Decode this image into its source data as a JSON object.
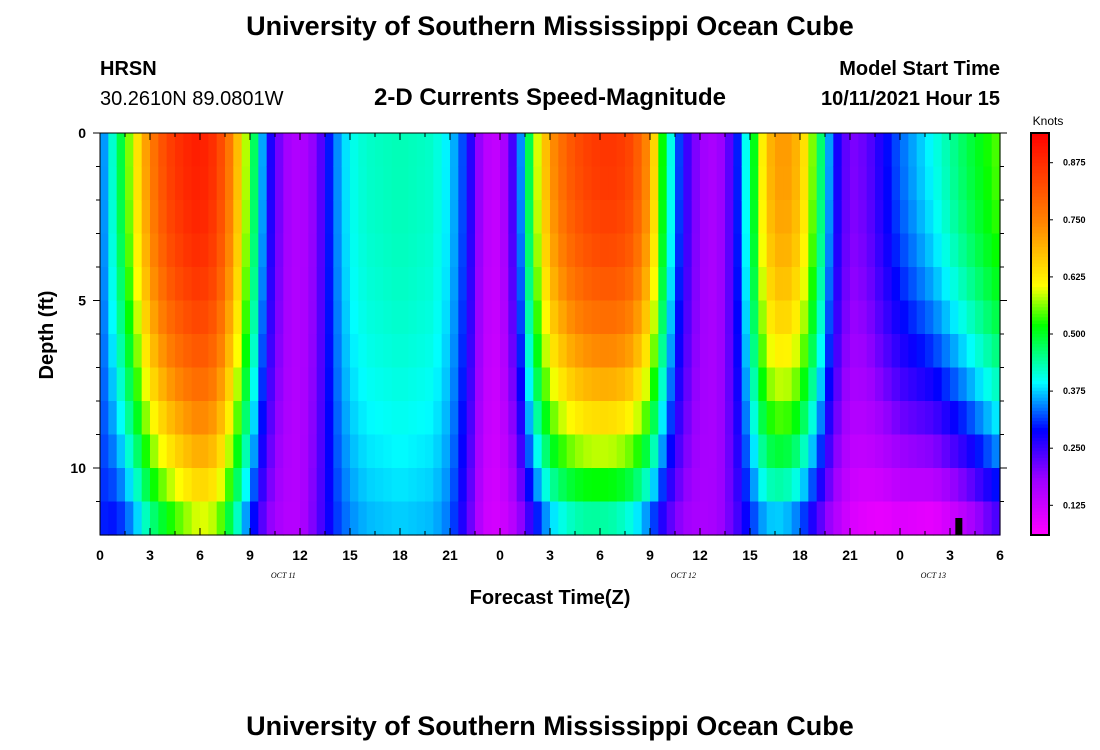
{
  "header": {
    "title": "University of Southern Mississippi Ocean Cube",
    "station": "HRSN",
    "coords": "30.2610N  89.0801W",
    "subtitle": "2-D Currents Speed-Magnitude",
    "model_label": "Model Start Time",
    "model_time": "10/11/2021 Hour 15"
  },
  "footer": {
    "title": "University of Southern Mississippi Ocean Cube"
  },
  "colorbar": {
    "unit": "Knots",
    "min": 0.06,
    "max": 0.94,
    "ticks": [
      "0.125",
      "0.250",
      "0.375",
      "0.500",
      "0.625",
      "0.750",
      "0.875"
    ]
  },
  "chart_data": {
    "type": "heatmap",
    "title": "2-D Currents Speed-Magnitude",
    "xlabel": "Forecast Time(Z)",
    "ylabel": "Depth (ft)",
    "value_unit": "Knots",
    "x_hours": [
      0,
      54
    ],
    "ylim": [
      0,
      12
    ],
    "x_ticks": [
      "0",
      "3",
      "6",
      "9",
      "12",
      "15",
      "18",
      "21",
      "0",
      "3",
      "6",
      "9",
      "12",
      "15",
      "18",
      "21",
      "0",
      "3",
      "6"
    ],
    "y_ticks": [
      "0",
      "5",
      "10"
    ],
    "date_labels": [
      {
        "hour": 11,
        "text": "OCT 11"
      },
      {
        "hour": 35,
        "text": "OCT 12"
      },
      {
        "hour": 50,
        "text": "OCT 13"
      }
    ],
    "column_profiles": [
      {
        "hour": 0,
        "surface": 0.32,
        "bottom": 0.3
      },
      {
        "hour": 1,
        "surface": 0.45,
        "bottom": 0.28
      },
      {
        "hour": 2,
        "surface": 0.6,
        "bottom": 0.33
      },
      {
        "hour": 3,
        "surface": 0.75,
        "bottom": 0.42
      },
      {
        "hour": 4,
        "surface": 0.84,
        "bottom": 0.48
      },
      {
        "hour": 5,
        "surface": 0.88,
        "bottom": 0.53
      },
      {
        "hour": 6,
        "surface": 0.9,
        "bottom": 0.57
      },
      {
        "hour": 7,
        "surface": 0.86,
        "bottom": 0.55
      },
      {
        "hour": 8,
        "surface": 0.73,
        "bottom": 0.43
      },
      {
        "hour": 9,
        "surface": 0.53,
        "bottom": 0.3
      },
      {
        "hour": 10,
        "surface": 0.3,
        "bottom": 0.19
      },
      {
        "hour": 11,
        "surface": 0.18,
        "bottom": 0.15
      },
      {
        "hour": 12,
        "surface": 0.15,
        "bottom": 0.15
      },
      {
        "hour": 13,
        "surface": 0.2,
        "bottom": 0.22
      },
      {
        "hour": 14,
        "surface": 0.33,
        "bottom": 0.3
      },
      {
        "hour": 15,
        "surface": 0.4,
        "bottom": 0.34
      },
      {
        "hour": 16,
        "surface": 0.42,
        "bottom": 0.36
      },
      {
        "hour": 18,
        "surface": 0.43,
        "bottom": 0.37
      },
      {
        "hour": 20,
        "surface": 0.42,
        "bottom": 0.36
      },
      {
        "hour": 21,
        "surface": 0.38,
        "bottom": 0.33
      },
      {
        "hour": 22,
        "surface": 0.3,
        "bottom": 0.24
      },
      {
        "hour": 23,
        "surface": 0.15,
        "bottom": 0.12
      },
      {
        "hour": 24,
        "surface": 0.13,
        "bottom": 0.11
      },
      {
        "hour": 25,
        "surface": 0.28,
        "bottom": 0.15
      },
      {
        "hour": 26,
        "surface": 0.55,
        "bottom": 0.25
      },
      {
        "hour": 27,
        "surface": 0.72,
        "bottom": 0.34
      },
      {
        "hour": 28,
        "surface": 0.8,
        "bottom": 0.38
      },
      {
        "hour": 29,
        "surface": 0.84,
        "bottom": 0.4
      },
      {
        "hour": 30,
        "surface": 0.86,
        "bottom": 0.4
      },
      {
        "hour": 31,
        "surface": 0.86,
        "bottom": 0.39
      },
      {
        "hour": 32,
        "surface": 0.83,
        "bottom": 0.36
      },
      {
        "hour": 33,
        "surface": 0.72,
        "bottom": 0.3
      },
      {
        "hour": 34,
        "surface": 0.45,
        "bottom": 0.22
      },
      {
        "hour": 35,
        "surface": 0.27,
        "bottom": 0.17
      },
      {
        "hour": 36,
        "surface": 0.18,
        "bottom": 0.16
      },
      {
        "hour": 37,
        "surface": 0.16,
        "bottom": 0.17
      },
      {
        "hour": 38,
        "surface": 0.25,
        "bottom": 0.22
      },
      {
        "hour": 39,
        "surface": 0.45,
        "bottom": 0.29
      },
      {
        "hour": 40,
        "surface": 0.68,
        "bottom": 0.34
      },
      {
        "hour": 41,
        "surface": 0.73,
        "bottom": 0.34
      },
      {
        "hour": 42,
        "surface": 0.68,
        "bottom": 0.3
      },
      {
        "hour": 43,
        "surface": 0.52,
        "bottom": 0.22
      },
      {
        "hour": 44,
        "surface": 0.3,
        "bottom": 0.15
      },
      {
        "hour": 45,
        "surface": 0.2,
        "bottom": 0.1
      },
      {
        "hour": 46,
        "surface": 0.22,
        "bottom": 0.08
      },
      {
        "hour": 47,
        "surface": 0.28,
        "bottom": 0.07
      },
      {
        "hour": 48,
        "surface": 0.33,
        "bottom": 0.08
      },
      {
        "hour": 50,
        "surface": 0.4,
        "bottom": 0.06
      },
      {
        "hour": 52,
        "surface": 0.48,
        "bottom": 0.12
      },
      {
        "hour": 54,
        "surface": 0.55,
        "bottom": 0.22
      }
    ],
    "current_time_marker_hour": 51.5
  }
}
